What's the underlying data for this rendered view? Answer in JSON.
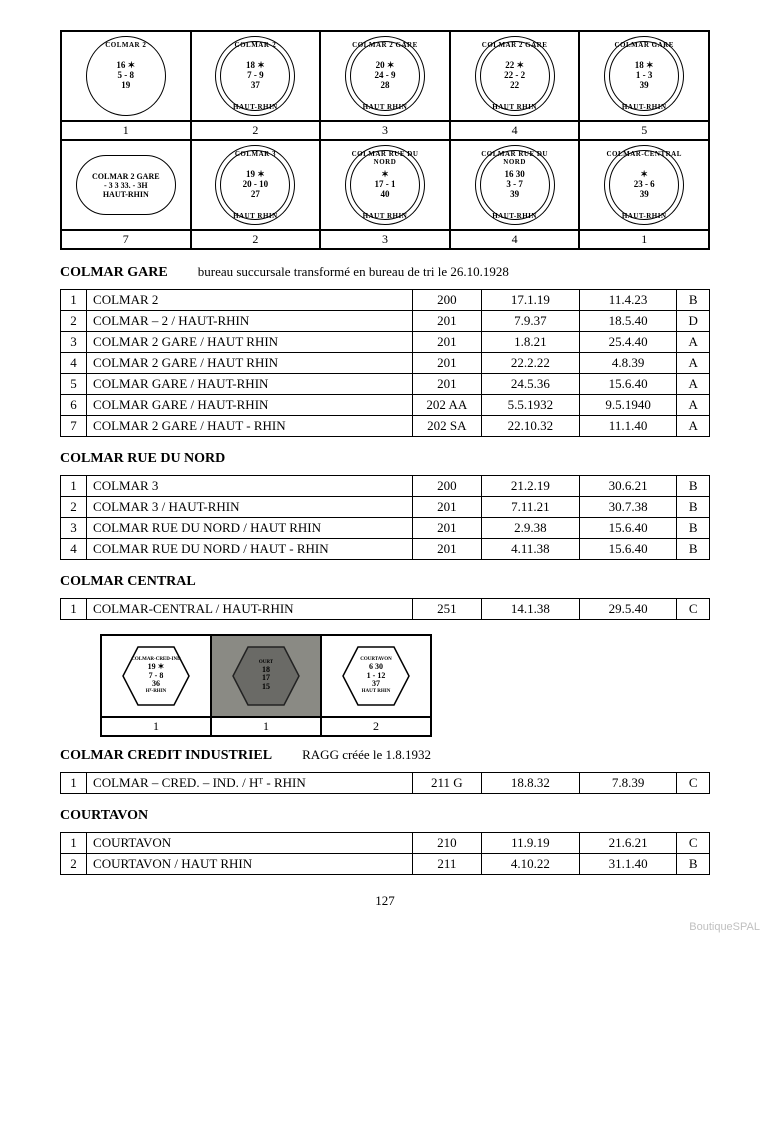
{
  "page_number": "127",
  "watermark": "BoutiqueSPAL",
  "postmarks_row1": [
    {
      "top": "COLMAR 2",
      "center": "16 ✶\n5 - 8\n19",
      "bot": "",
      "double": false,
      "num": "1"
    },
    {
      "top": "COLMAR-2",
      "center": "18 ✶\n7 - 9\n37",
      "bot": "HAUT-RHIN",
      "double": true,
      "num": "2"
    },
    {
      "top": "COLMAR 2 GARE",
      "center": "20 ✶\n24 - 9\n28",
      "bot": "HAUT RHIN",
      "double": true,
      "num": "3"
    },
    {
      "top": "COLMAR 2 GARE",
      "center": "22 ✶\n22 - 2\n22",
      "bot": "HAUT RHIN",
      "double": true,
      "num": "4"
    },
    {
      "top": "COLMAR GARE",
      "center": "18 ✶\n1 - 3\n39",
      "bot": "HAUT-RHIN",
      "double": true,
      "num": "5"
    }
  ],
  "postmarks_row2": [
    {
      "type": "rect",
      "top": "COLMAR 2 GARE",
      "center": "- 3 3 33. - 3H",
      "bot": "HAUT-RHIN",
      "num": "7"
    },
    {
      "top": "COLMAR 3",
      "center": "19 ✶\n20 - 10\n27",
      "bot": "HAUT RHIN",
      "double": true,
      "num": "2"
    },
    {
      "top": "COLMAR RUE DU NORD",
      "center": "✶\n17 - 1\n40",
      "bot": "HAUT RHIN",
      "double": true,
      "num": "3"
    },
    {
      "top": "COLMAR RUE DU NORD",
      "center": "16 30\n3 - 7\n39",
      "bot": "HAUT-RHIN",
      "double": true,
      "num": "4"
    },
    {
      "top": "COLMAR-CENTRAL",
      "center": "✶\n23 - 6\n39",
      "bot": "HAUT-RHIN",
      "double": true,
      "num": "1"
    }
  ],
  "sections": {
    "colmar_gare": {
      "title": "COLMAR GARE",
      "note": "bureau succursale transformé en bureau de tri le 26.10.1928",
      "rows": [
        {
          "idx": "1",
          "name": "COLMAR 2",
          "code": "200",
          "d1": "17.1.19",
          "d2": "11.4.23",
          "grade": "B"
        },
        {
          "idx": "2",
          "name": "COLMAR – 2 / HAUT-RHIN",
          "code": "201",
          "d1": "7.9.37",
          "d2": "18.5.40",
          "grade": "D"
        },
        {
          "idx": "3",
          "name": "COLMAR 2 GARE / HAUT RHIN",
          "code": "201",
          "d1": "1.8.21",
          "d2": "25.4.40",
          "grade": "A"
        },
        {
          "idx": "4",
          "name": "COLMAR 2 GARE / HAUT RHIN",
          "code": "201",
          "d1": "22.2.22",
          "d2": "4.8.39",
          "grade": "A"
        },
        {
          "idx": "5",
          "name": "COLMAR GARE / HAUT-RHIN",
          "code": "201",
          "d1": "24.5.36",
          "d2": "15.6.40",
          "grade": "A"
        },
        {
          "idx": "6",
          "name": "COLMAR GARE / HAUT-RHIN",
          "code": "202 AA",
          "d1": "5.5.1932",
          "d2": "9.5.1940",
          "grade": "A"
        },
        {
          "idx": "7",
          "name": "COLMAR 2 GARE / HAUT - RHIN",
          "code": "202 SA",
          "d1": "22.10.32",
          "d2": "11.1.40",
          "grade": "A"
        }
      ]
    },
    "colmar_rue": {
      "title": "COLMAR RUE DU NORD",
      "rows": [
        {
          "idx": "1",
          "name": "COLMAR 3",
          "code": "200",
          "d1": "21.2.19",
          "d2": "30.6.21",
          "grade": "B"
        },
        {
          "idx": "2",
          "name": "COLMAR 3 / HAUT-RHIN",
          "code": "201",
          "d1": "7.11.21",
          "d2": "30.7.38",
          "grade": "B"
        },
        {
          "idx": "3",
          "name": "COLMAR RUE DU NORD / HAUT RHIN",
          "code": "201",
          "d1": "2.9.38",
          "d2": "15.6.40",
          "grade": "B"
        },
        {
          "idx": "4",
          "name": "COLMAR RUE DU NORD / HAUT - RHIN",
          "code": "201",
          "d1": "4.11.38",
          "d2": "15.6.40",
          "grade": "B"
        }
      ]
    },
    "colmar_central": {
      "title": "COLMAR CENTRAL",
      "rows": [
        {
          "idx": "1",
          "name": "COLMAR-CENTRAL / HAUT-RHIN",
          "code": "251",
          "d1": "14.1.38",
          "d2": "29.5.40",
          "grade": "C"
        }
      ]
    },
    "hex_marks": [
      {
        "top": "COLMAR-CRED-IND",
        "center": "19 ✶\n7 - 8\n36",
        "bot": "Hᵀ-RHIN",
        "num": "1",
        "dark": false
      },
      {
        "top": "OURT",
        "center": "18\n17\n15",
        "bot": "",
        "num": "1",
        "dark": true
      },
      {
        "top": "COURTAVON",
        "center": "6 30\n1 - 12\n37",
        "bot": "HAUT RHIN",
        "num": "2",
        "dark": false
      }
    ],
    "colmar_credit": {
      "title": "COLMAR CREDIT INDUSTRIEL",
      "note": "RAGG créée le 1.8.1932",
      "rows": [
        {
          "idx": "1",
          "name": "COLMAR – CRED. – IND. / Hᵀ - RHIN",
          "code": "211 G",
          "d1": "18.8.32",
          "d2": "7.8.39",
          "grade": "C"
        }
      ]
    },
    "courtavon": {
      "title": "COURTAVON",
      "rows": [
        {
          "idx": "1",
          "name": "COURTAVON",
          "code": "210",
          "d1": "11.9.19",
          "d2": "21.6.21",
          "grade": "C"
        },
        {
          "idx": "2",
          "name": "COURTAVON / HAUT RHIN",
          "code": "211",
          "d1": "4.10.22",
          "d2": "31.1.40",
          "grade": "B"
        }
      ]
    }
  }
}
